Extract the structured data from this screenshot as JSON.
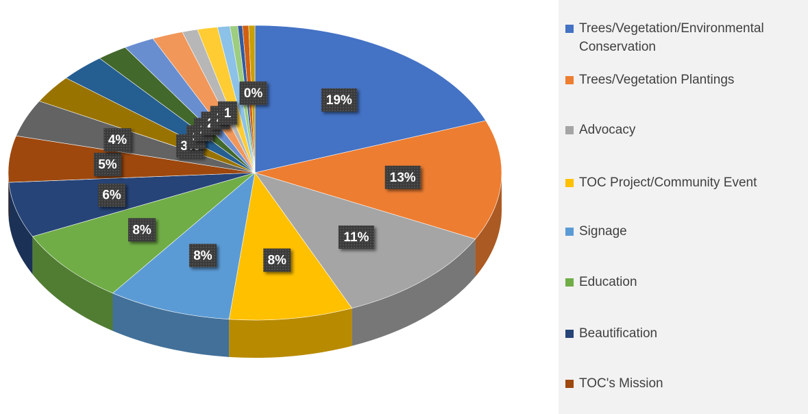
{
  "chart_data": {
    "type": "pie",
    "categories": [
      "Trees/Vegetation/Environmental Conservation",
      "Trees/Vegetation Plantings",
      "Advocacy",
      "TOC Project/Community Event",
      "Signage",
      "Education",
      "Beautification",
      "TOC's Mission",
      null,
      null,
      null,
      null,
      null,
      null,
      null,
      null,
      null,
      null,
      null,
      null,
      null
    ],
    "values": [
      19,
      13,
      11,
      8,
      8,
      8,
      6,
      5,
      4,
      3,
      3,
      2,
      2,
      2,
      1,
      1.3,
      0.8,
      0.5,
      0.3,
      0.4,
      0.4
    ],
    "value_labels": [
      "19%",
      "13%",
      "11%",
      "8%",
      "8%",
      "8%",
      "6%",
      "5%",
      "4%",
      "3%",
      "3",
      "2",
      "2",
      "2",
      "1",
      null,
      null,
      null,
      null,
      null,
      "0%"
    ],
    "colors": [
      "#4472c4",
      "#ed7d31",
      "#a5a5a5",
      "#ffc000",
      "#5b9bd5",
      "#70ad47",
      "#264478",
      "#9e480e",
      "#636363",
      "#997300",
      "#255e91",
      "#43682b",
      "#698ed0",
      "#f1975a",
      "#b7b7b7",
      "#ffcd33",
      "#8cc1e8",
      "#9dcd7e",
      "#335aa1",
      "#d26012",
      "#c9a000"
    ]
  }
}
